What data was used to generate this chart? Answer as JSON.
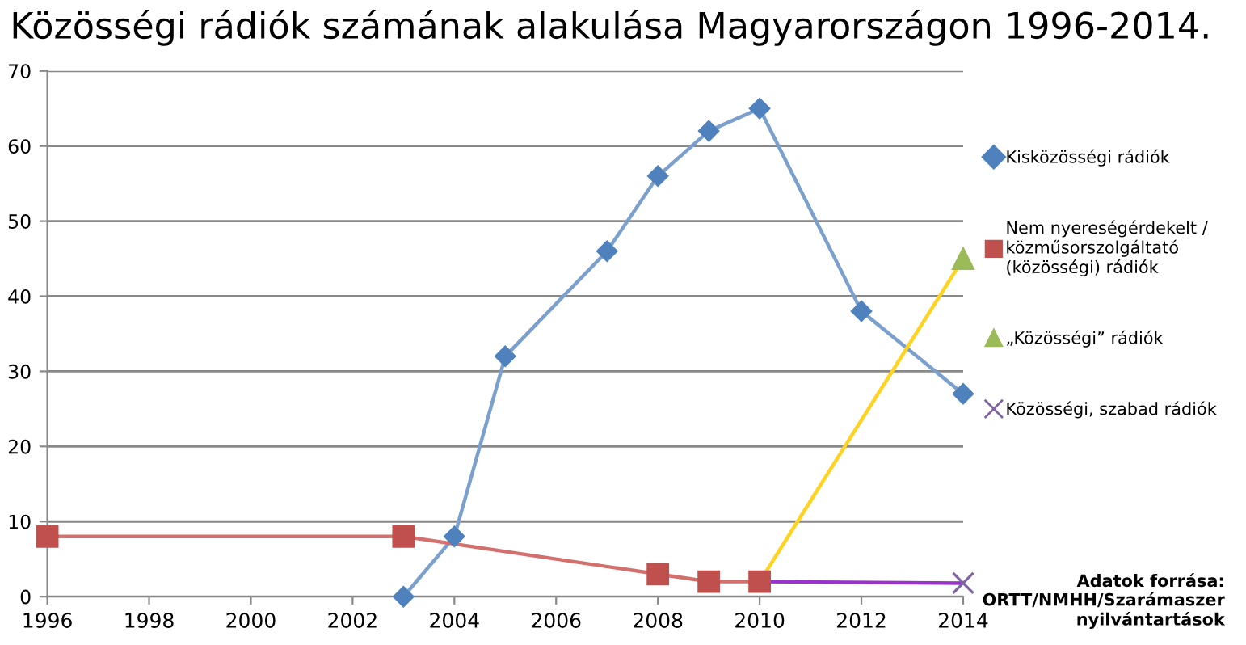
{
  "chart_data": {
    "type": "line",
    "title": "Közösségi rádiók számának alakulása Magyarországon 1996-2014.",
    "series": [
      {
        "name": "Kisközösségi rádiók",
        "color": "#7ba0cd",
        "colors": [
          "#4f81bd",
          "#4f81bd",
          "#4f81bd",
          "#4f81bd",
          "#4f81bd",
          "#4f81bd",
          "#4f81bd",
          "#4f81bd",
          "#4f81bd"
        ],
        "marker": "diamond",
        "x": [
          2003,
          2004,
          2005,
          2007,
          2008,
          2009,
          2010,
          2012,
          2014
        ],
        "values": [
          0,
          8,
          32,
          46,
          56,
          62,
          65,
          38,
          27
        ]
      },
      {
        "name": "Nem nyereségérdekelt /\nközműsorszolgáltató\n(közösségi) rádiók",
        "color": "#d36f6c",
        "colors": [
          "#c0504d",
          "#c0504d",
          "#c0504d",
          "#c0504d",
          "#c0504d"
        ],
        "marker": "square",
        "x": [
          1996,
          2003,
          2008,
          2009,
          2010
        ],
        "values": [
          8,
          8,
          3,
          2,
          2
        ]
      },
      {
        "name": "„Közösségi” rádiók",
        "color": "#ffd320",
        "colors": [
          null,
          "#9bbb59"
        ],
        "marker": "triangle",
        "x": [
          2010,
          2014
        ],
        "values": [
          2,
          45
        ]
      },
      {
        "name": "Közösségi, szabad rádiók",
        "color": "#9933cc",
        "colors": [
          null,
          "#8064a2"
        ],
        "marker": "cross",
        "x": [
          2010,
          2014
        ],
        "values": [
          2,
          1.8
        ]
      }
    ],
    "xlim": [
      1996,
      2014
    ],
    "xticks": [
      1996,
      1998,
      2000,
      2002,
      2004,
      2006,
      2008,
      2010,
      2012,
      2014
    ],
    "ylim": [
      0,
      70
    ],
    "yticks": [
      0,
      10,
      20,
      30,
      40,
      50,
      60,
      70
    ],
    "grid": "y",
    "legend": "right",
    "annotations": [
      "Adatok forrása:\nORTT/NMHH/Szarámaszer\nnyilvántartások"
    ]
  }
}
